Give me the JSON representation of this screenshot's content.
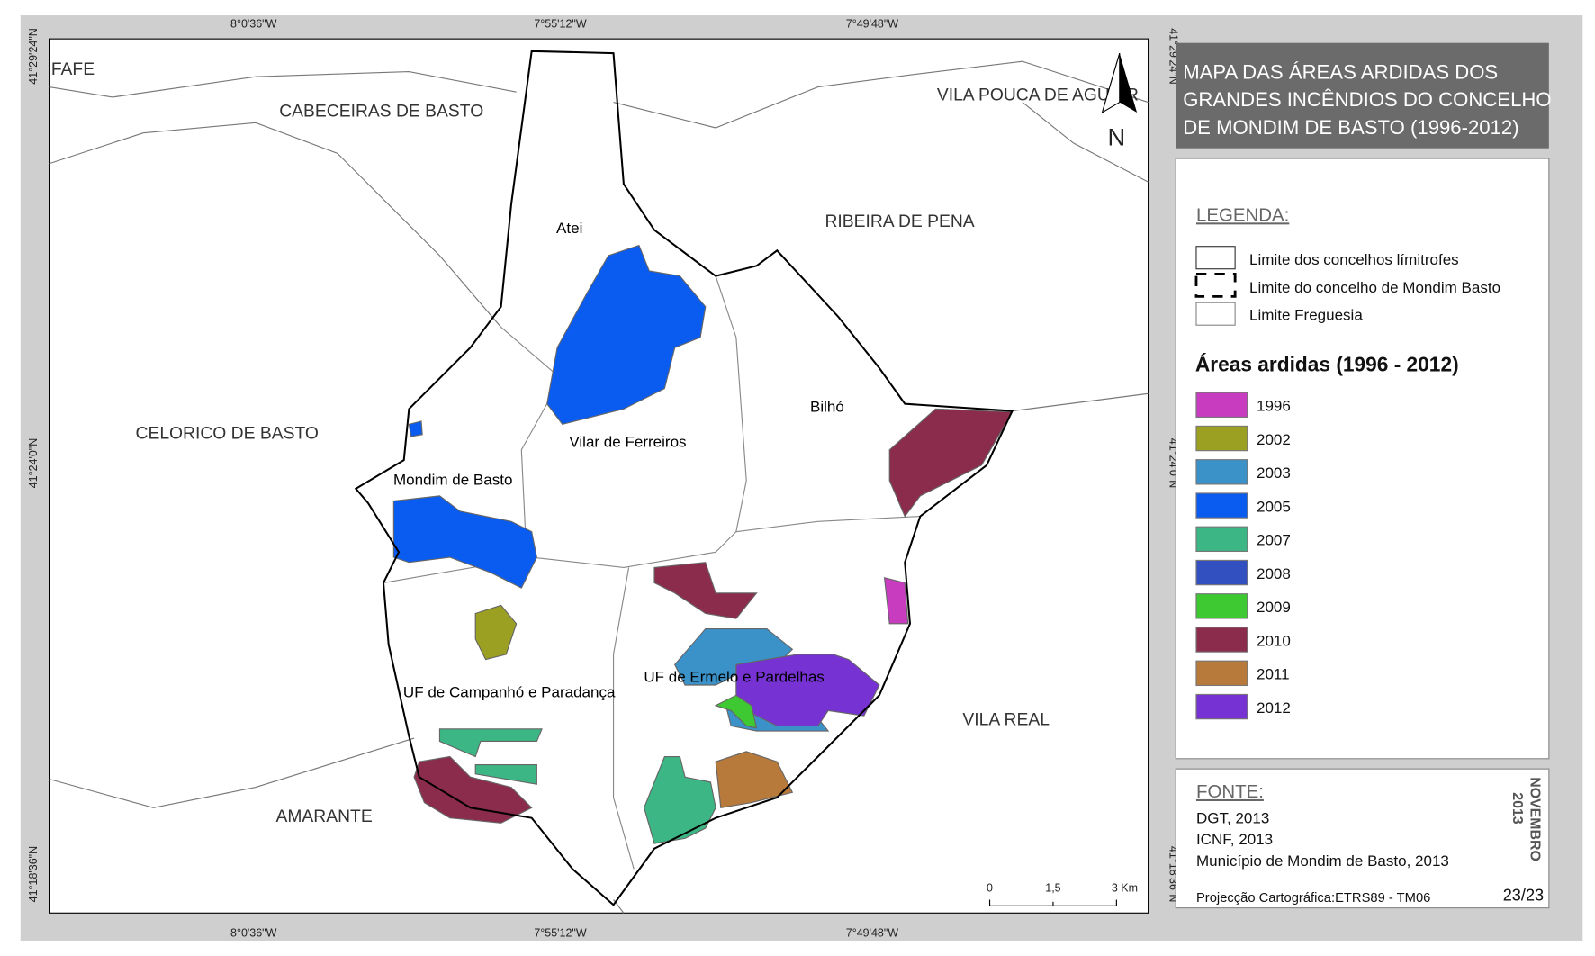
{
  "coordinates": {
    "longitudes": [
      "8°0'36\"W",
      "7°55'12\"W",
      "7°49'48\"W"
    ],
    "latitudes": [
      "41°29'24\"N",
      "41°24'0\"N",
      "41°18'36\"N"
    ]
  },
  "municipalities": [
    "FAFE",
    "CABECEIRAS DE BASTO",
    "VILA POUCA DE AGUIAR",
    "RIBEIRA DE PENA",
    "CELORICO DE BASTO",
    "VILA REAL",
    "AMARANTE"
  ],
  "parishes": [
    "Atei",
    "Vilar de Ferreiros",
    "Bilhó",
    "Mondim de Basto",
    "UF de Ermelo e Pardelhas",
    "UF de Campanhó e Paradança"
  ],
  "north": "N",
  "scale_bar": [
    "0",
    "1,5",
    "3 Km"
  ],
  "title": [
    "MAPA DAS ÁREAS ARDIDAS DOS",
    "GRANDES INCÊNDIOS DO CONCELHO",
    "DE MONDIM DE BASTO (1996-2012)"
  ],
  "legend": {
    "heading": "LEGENDA:",
    "boundaries": [
      "Limite dos concelhos límitrofes",
      "Limite do concelho de Mondim Basto",
      "Limite Freguesia"
    ],
    "burned_title": "Áreas ardidas (1996 - 2012)",
    "years": [
      {
        "label": "1996",
        "color": "#c83cc0"
      },
      {
        "label": "2002",
        "color": "#9ca022"
      },
      {
        "label": "2003",
        "color": "#3b92c8"
      },
      {
        "label": "2005",
        "color": "#0a5cf0"
      },
      {
        "label": "2007",
        "color": "#3cb684"
      },
      {
        "label": "2008",
        "color": "#3350c0"
      },
      {
        "label": "2009",
        "color": "#3ec832"
      },
      {
        "label": "2010",
        "color": "#8c2c4c"
      },
      {
        "label": "2011",
        "color": "#b87a3a"
      },
      {
        "label": "2012",
        "color": "#7632d2"
      }
    ]
  },
  "source": {
    "heading": "FONTE:",
    "items": [
      "DGT, 2013",
      "ICNF, 2013",
      "Município de Mondim de Basto, 2013"
    ],
    "projection": "Projecção Cartográfica:ETRS89 - TM06"
  },
  "date": [
    "NOVEMBRO",
    "2013"
  ],
  "page": "23/23"
}
